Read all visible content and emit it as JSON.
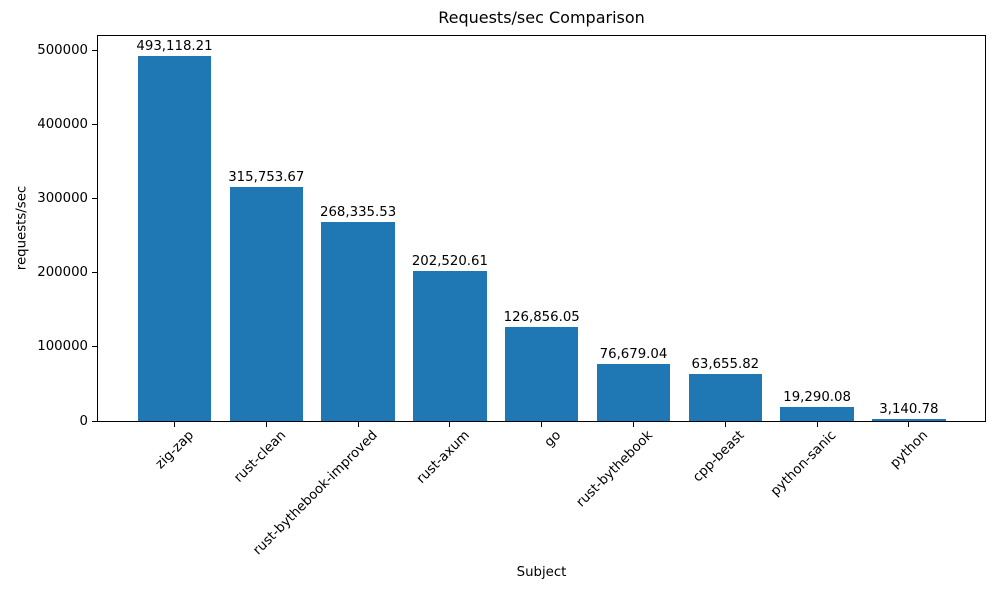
{
  "chart_data": {
    "type": "bar",
    "title": "Requests/sec Comparison",
    "xlabel": "Subject",
    "ylabel": "requests/sec",
    "categories": [
      "zig-zap",
      "rust-clean",
      "rust-bythebook-improved",
      "rust-axum",
      "go",
      "rust-bythebook",
      "cpp-beast",
      "python-sanic",
      "python"
    ],
    "values": [
      493118.21,
      315753.67,
      268335.53,
      202520.61,
      126856.05,
      76679.04,
      63655.82,
      19290.08,
      3140.78
    ],
    "bar_labels": [
      "493,118.21",
      "315,753.67",
      "268,335.53",
      "202,520.61",
      "126,856.05",
      "76,679.04",
      "63,655.82",
      "19,290.08",
      "3,140.78"
    ],
    "bar_color": "#1f77b4",
    "text_color": "#000000",
    "ylim": [
      0,
      520000
    ],
    "yticks": [
      0,
      100000,
      200000,
      300000,
      400000,
      500000
    ],
    "ytick_labels": [
      "0",
      "100000",
      "200000",
      "300000",
      "400000",
      "500000"
    ],
    "grid": false,
    "legend": null,
    "xtick_rotation_deg": 45
  }
}
